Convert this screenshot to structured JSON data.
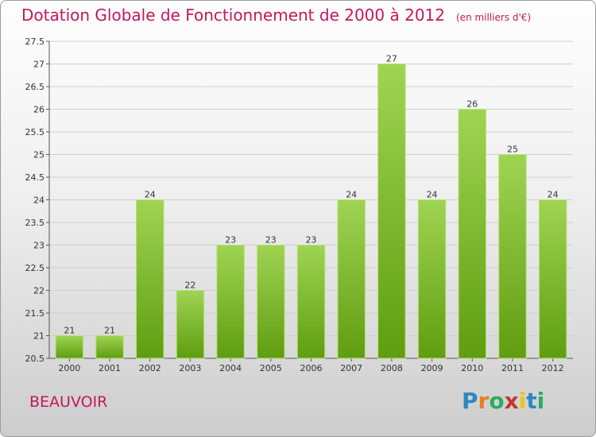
{
  "title": "Dotation Globale de Fonctionnement de 2000 à 2012",
  "subtitle": "(en milliers d'€)",
  "commune": "BEAUVOIR",
  "logo": {
    "text": "Proxiti",
    "letters": [
      "P",
      "r",
      "o",
      "x",
      "i",
      "t",
      "i"
    ],
    "colors": [
      "#2e86c1",
      "#e67e22",
      "#27ae60",
      "#c0392b",
      "#f1c40f",
      "#2e86c1",
      "#27ae60"
    ]
  },
  "chart_data": {
    "type": "bar",
    "title": "Dotation Globale de Fonctionnement de 2000 à 2012",
    "subtitle": "(en milliers d'€)",
    "categories": [
      "2000",
      "2001",
      "2002",
      "2003",
      "2004",
      "2005",
      "2006",
      "2007",
      "2008",
      "2009",
      "2010",
      "2011",
      "2012"
    ],
    "values": [
      21,
      21,
      24,
      22,
      23,
      23,
      23,
      24,
      27,
      24,
      26,
      25,
      24
    ],
    "data_labels": [
      "21",
      "21",
      "24",
      "22",
      "23",
      "23",
      "23",
      "24",
      "27",
      "24",
      "26",
      "25",
      "24"
    ],
    "ylim": [
      20.5,
      27.5
    ],
    "yticks": [
      20.5,
      21,
      21.5,
      22,
      22.5,
      23,
      23.5,
      24,
      24.5,
      25,
      25.5,
      26,
      26.5,
      27,
      27.5
    ],
    "ytick_labels": [
      "20.5",
      "21",
      "21.5",
      "22",
      "22.5",
      "23",
      "23.5",
      "24",
      "24.5",
      "25",
      "25.5",
      "26",
      "26.5",
      "27",
      "27.5"
    ],
    "grid": true,
    "bar_color": "#8cc63f",
    "xlabel": "",
    "ylabel": ""
  }
}
